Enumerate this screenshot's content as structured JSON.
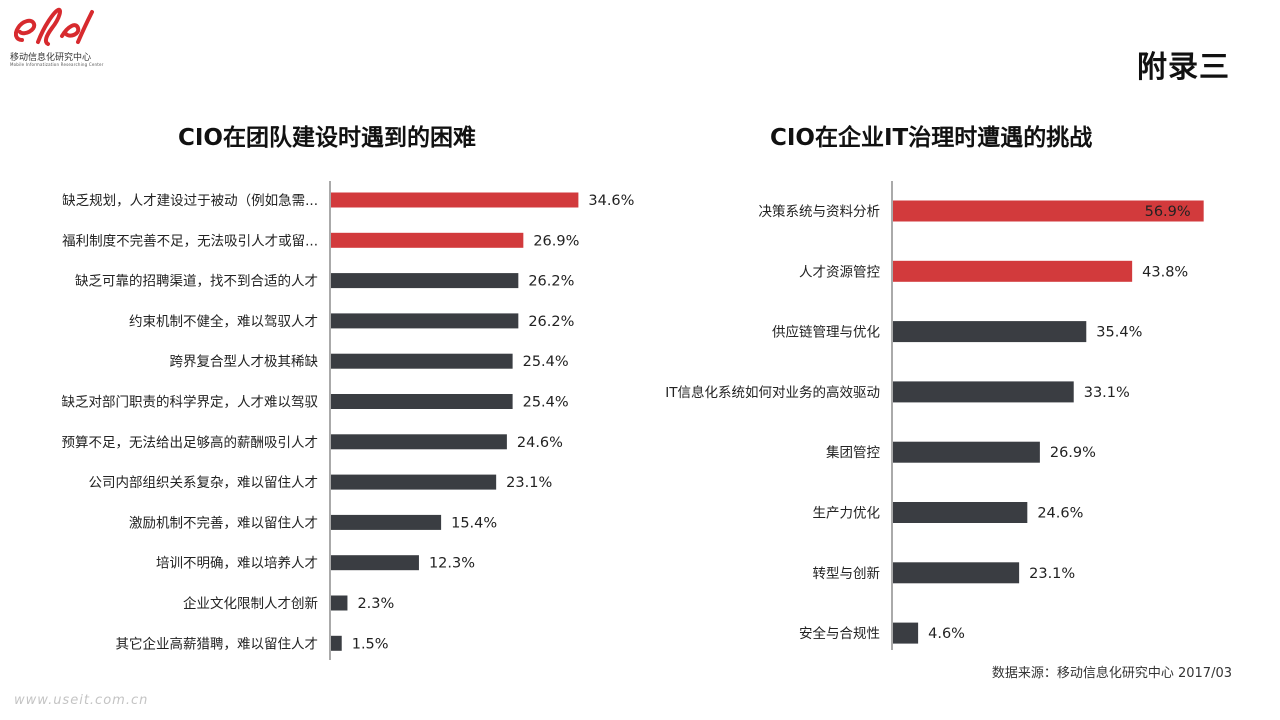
{
  "header": {
    "logo_cn": "移动信息化研究中心",
    "logo_en": "Mobile Informatization Researching Center",
    "appendix_title": "附录三"
  },
  "footer": {
    "source": "数据来源：移动信息化研究中心 2017/03",
    "watermark": "www.useit.com.cn"
  },
  "colors": {
    "highlight": "#d23a3c",
    "normal": "#3a3d42",
    "axis": "#555555"
  },
  "chart_data": [
    {
      "type": "bar",
      "orientation": "horizontal",
      "title": "CIO在团队建设时遇到的困难",
      "categories": [
        "缺乏规划，人才建设过于被动（例如急需...",
        "福利制度不完善不足，无法吸引人才或留...",
        "缺乏可靠的招聘渠道，找不到合适的人才",
        "约束机制不健全，难以驾驭人才",
        "跨界复合型人才极其稀缺",
        "缺乏对部门职责的科学界定，人才难以驾驭",
        "预算不足，无法给出足够高的薪酬吸引人才",
        "公司内部组织关系复杂，难以留住人才",
        "激励机制不完善，难以留住人才",
        "培训不明确，难以培养人才",
        "企业文化限制人才创新",
        "其它企业高薪猎聘，难以留住人才"
      ],
      "values": [
        34.6,
        26.9,
        26.2,
        26.2,
        25.4,
        25.4,
        24.6,
        23.1,
        15.4,
        12.3,
        2.3,
        1.5
      ],
      "data_labels": [
        "34.6%",
        "26.9%",
        "26.2%",
        "26.2%",
        "25.4%",
        "25.4%",
        "24.6%",
        "23.1%",
        "15.4%",
        "12.3%",
        "2.3%",
        "1.5%"
      ],
      "highlight_count": 2,
      "grid": false,
      "legend": "none"
    },
    {
      "type": "bar",
      "orientation": "horizontal",
      "title": "CIO在企业IT治理时遭遇的挑战",
      "categories": [
        "决策系统与资料分析",
        "人才资源管控",
        "供应链管理与优化",
        "IT信息化系统如何对业务的高效驱动",
        "集团管控",
        "生产力优化",
        "转型与创新",
        "安全与合规性"
      ],
      "values": [
        56.9,
        43.8,
        35.4,
        33.1,
        26.9,
        24.6,
        23.1,
        4.6
      ],
      "data_labels": [
        "56.9%",
        "43.8%",
        "35.4%",
        "33.1%",
        "26.9%",
        "24.6%",
        "23.1%",
        "4.6%"
      ],
      "highlight_count": 2,
      "label_inside_first": true,
      "grid": false,
      "legend": "none"
    }
  ]
}
